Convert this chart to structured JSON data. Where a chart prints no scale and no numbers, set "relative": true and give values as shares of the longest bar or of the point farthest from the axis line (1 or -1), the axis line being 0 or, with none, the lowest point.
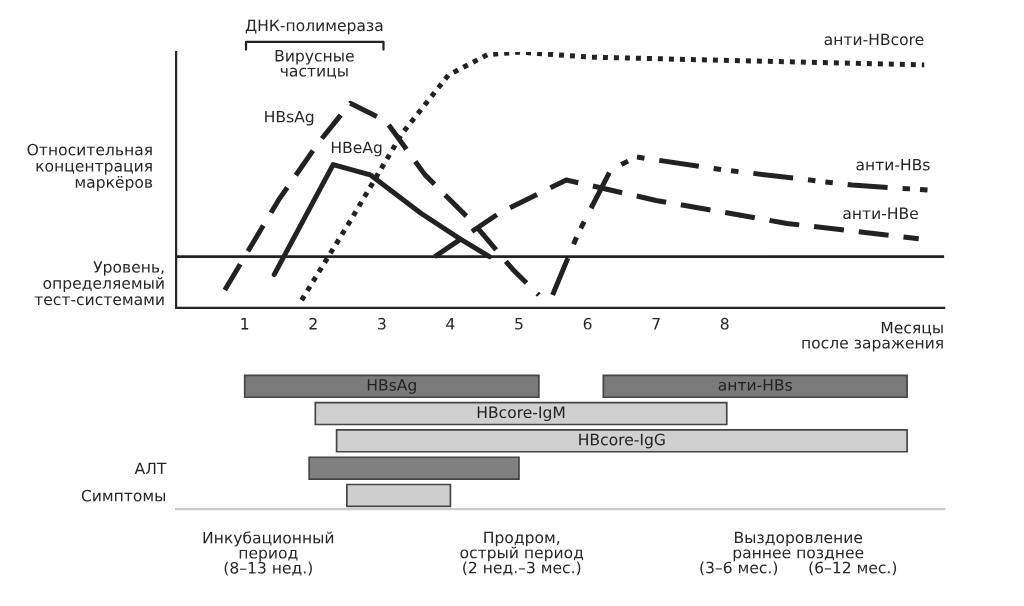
{
  "chart_data": [
    {
      "type": "line",
      "relative": true,
      "xlabel": "Месяцы\nпосле заражения",
      "ylabel": "Относительная\nконцентрация\nмаркёров",
      "xlim": [
        0,
        11.2
      ],
      "xticks": [
        1,
        2,
        3,
        4,
        5,
        6,
        7,
        8
      ],
      "tick_labels": "x",
      "grid": false,
      "legend": false,
      "ref_lines": [
        {
          "axis": "y",
          "value": 0.2,
          "label": "Уровень,\nопределяемый\nтест-системами",
          "color": "#222222"
        }
      ],
      "annotations": [
        "ДНК-полимераза",
        "Вирусные\nчастицы"
      ],
      "series": [
        {
          "name": "HBsAg",
          "color": "#222222",
          "line_style": "dashed",
          "x": [
            0.71,
            1.49,
            2.06,
            2.54,
            3.06,
            3.63,
            4.34,
            4.91,
            5.29
          ],
          "values": [
            0.07,
            0.42,
            0.64,
            0.8,
            0.73,
            0.52,
            0.33,
            0.15,
            0.05
          ]
        },
        {
          "name": "HBeAg",
          "color": "#222222",
          "line_style": "solid",
          "x": [
            1.43,
            2.29,
            2.83,
            3.57,
            4.14,
            4.57
          ],
          "values": [
            0.13,
            0.56,
            0.52,
            0.37,
            0.27,
            0.2
          ]
        },
        {
          "name": "анти-HBcore",
          "color": "#222222",
          "line_style": "dotted",
          "x": [
            1.83,
            2.54,
            3.29,
            3.97,
            4.54,
            5.0,
            6.06,
            10.91
          ],
          "values": [
            0.03,
            0.34,
            0.68,
            0.91,
            0.99,
            1.0,
            0.98,
            0.95
          ]
        },
        {
          "name": "анти-HBs",
          "color": "#222222",
          "line_style": "dashdot",
          "x": [
            5.49,
            5.86,
            6.34,
            6.71,
            7.97,
            9.86,
            11.0
          ],
          "values": [
            0.05,
            0.29,
            0.54,
            0.59,
            0.54,
            0.48,
            0.46
          ]
        },
        {
          "name": "анти-HBe",
          "color": "#222222",
          "line_style": "dashed",
          "x": [
            3.77,
            4.71,
            5.69,
            7.0,
            8.91,
            10.83
          ],
          "values": [
            0.2,
            0.37,
            0.5,
            0.42,
            0.33,
            0.27
          ]
        }
      ]
    },
    {
      "type": "bar",
      "orientation": "horizontal",
      "xlim": [
        0,
        11.2
      ],
      "tick_labels": "y",
      "categories": [
        null,
        null,
        null,
        "АЛТ",
        "Симптомы"
      ],
      "annotations": [
        "Инкубационный\nпериод\n(8–13 нед.)",
        "Продром,\nострый период\n(2 нед.–3 мес.)",
        "Выздоровление\nраннее позднее\n(3–6 мес.)      (6–12 мес.)"
      ],
      "series": [
        {
          "name": "HBsAg",
          "color": "#7a7a7a",
          "base": [
            1.0,
            null,
            null,
            null,
            null
          ],
          "values": [
            4.29,
            null,
            null,
            null,
            null
          ]
        },
        {
          "name": "анти-HBs",
          "color": "#7a7a7a",
          "base": [
            6.23,
            null,
            null,
            null,
            null
          ],
          "values": [
            4.43,
            null,
            null,
            null,
            null
          ]
        },
        {
          "name": "HBcore-IgM",
          "color": "#d0d0d0",
          "base": [
            null,
            2.03,
            null,
            null,
            null
          ],
          "values": [
            null,
            6.0,
            null,
            null,
            null
          ]
        },
        {
          "name": "HBcore-IgG",
          "color": "#d0d0d0",
          "base": [
            null,
            null,
            2.34,
            null,
            null
          ],
          "values": [
            null,
            null,
            8.32,
            null,
            null
          ]
        },
        {
          "color": "#808080",
          "base": [
            null,
            null,
            null,
            1.94,
            null
          ],
          "values": [
            null,
            null,
            null,
            3.06,
            null
          ]
        },
        {
          "color": "#cfcfcf",
          "base": [
            null,
            null,
            null,
            null,
            2.49
          ],
          "values": [
            null,
            null,
            null,
            null,
            1.51
          ]
        }
      ]
    }
  ]
}
